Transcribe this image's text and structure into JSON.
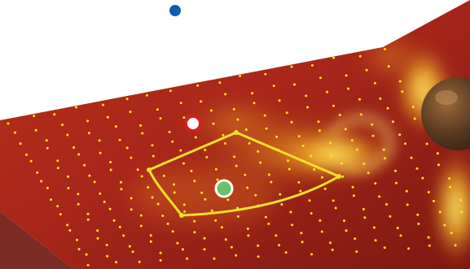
{
  "scene": {
    "colors": {
      "background": "#ffffff",
      "surface_dark": "#8f1c12",
      "surface_mid": "#c0391a",
      "hotspot_light": "#f7d23a",
      "hotspot_core": "#fff06a",
      "sample_dot": "#ffe21f",
      "region_outline": "#f2e12a",
      "blue_marker": "#0b5fb0",
      "red_marker": "#d42027",
      "green_marker": "#6bbf66",
      "marker_border": "#ffffff"
    },
    "icons": {
      "red_marker": "red-ring-marker-icon",
      "green_marker": "green-ring-marker-icon",
      "blue_marker": "blue-dot-marker-icon"
    }
  }
}
